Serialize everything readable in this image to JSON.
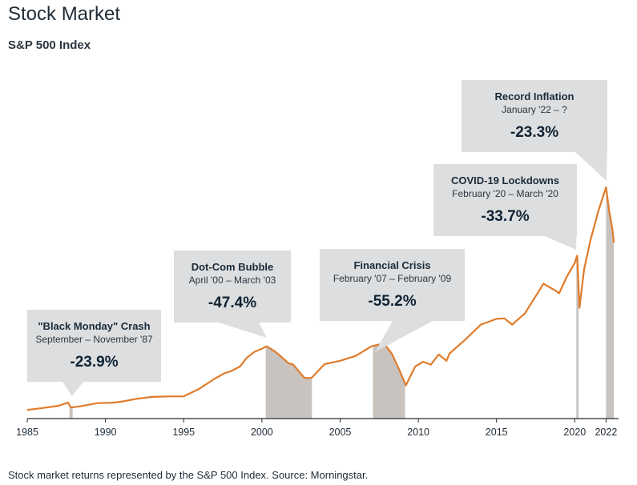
{
  "title": "Stock Market",
  "subtitle": "S&P 500 Index",
  "footnote": "Stock market returns represented by the S&P 500 Index. Source: Morningstar.",
  "colors": {
    "line": "#e07b2a",
    "shade": "#c8c3bf",
    "callout": "#dcdedf",
    "axis": "#2b2b2b"
  },
  "chart_data": {
    "type": "line",
    "title": "Stock Market",
    "subtitle": "S&P 500 Index",
    "xlim": [
      1985,
      2022.8
    ],
    "x_ticks": [
      1985,
      1990,
      1995,
      2000,
      2005,
      2010,
      2015,
      2020,
      2022
    ],
    "x_tick_labels": [
      "1985",
      "1990",
      "1995",
      "2000",
      "2005",
      "2010",
      "2015",
      "2020",
      "2022"
    ],
    "y_axis_labeled": false,
    "grid": false,
    "series": [
      {
        "x": [
          1985.0,
          1986.0,
          1987.0,
          1987.6,
          1987.8,
          1988.5,
          1989.5,
          1990.5,
          1991.0,
          1992.0,
          1993.0,
          1994.0,
          1995.0,
          1996.0,
          1997.0,
          1997.6,
          1998.0,
          1998.6,
          1999.0,
          1999.5,
          2000.0,
          2000.3,
          2000.8,
          2001.0,
          2001.7,
          2002.0,
          2002.7,
          2003.0,
          2003.2,
          2004.0,
          2005.0,
          2006.0,
          2007.0,
          2007.8,
          2008.3,
          2008.8,
          2009.2,
          2009.8,
          2010.3,
          2010.8,
          2011.3,
          2011.8,
          2012.0,
          2013.0,
          2014.0,
          2015.0,
          2015.5,
          2016.0,
          2016.8,
          2017.0,
          2018.0,
          2018.8,
          2019.0,
          2019.5,
          2020.0,
          2020.15,
          2020.3,
          2020.6,
          2021.0,
          2021.5,
          2022.0,
          2022.2,
          2022.4,
          2022.5
        ],
        "y": [
          180,
          220,
          265,
          330,
          230,
          260,
          320,
          330,
          350,
          410,
          450,
          460,
          460,
          620,
          830,
          940,
          980,
          1080,
          1250,
          1380,
          1450,
          1500,
          1400,
          1350,
          1150,
          1120,
          850,
          840,
          850,
          1130,
          1200,
          1300,
          1500,
          1560,
          1350,
          1000,
          690,
          1080,
          1180,
          1120,
          1330,
          1200,
          1350,
          1640,
          1950,
          2070,
          2080,
          1950,
          2180,
          2280,
          2800,
          2650,
          2600,
          2950,
          3230,
          3380,
          2300,
          3100,
          3700,
          4300,
          4800,
          4300,
          3950,
          3650
        ]
      }
    ],
    "shaded_periods": [
      {
        "label": "\"Black Monday\" Crash",
        "range": "September – November '87",
        "value": "-23.9%",
        "start": 1987.7,
        "end": 1987.9
      },
      {
        "label": "Dot-Com Bubble",
        "range": "April '00 – March '03",
        "value": "-47.4%",
        "start": 2000.25,
        "end": 2003.2
      },
      {
        "label": "Financial Crisis",
        "range": "February '07 – February '09",
        "value": "-55.2%",
        "start": 2007.1,
        "end": 2009.15
      },
      {
        "label": "COVID-19 Lockdowns",
        "range": "February '20 – March '20",
        "value": "-33.7%",
        "start": 2020.1,
        "end": 2020.25
      },
      {
        "label": "Record Inflation",
        "range": "January '22 – ?",
        "value": "-23.3%",
        "start": 2022.0,
        "end": 2022.5
      }
    ]
  }
}
